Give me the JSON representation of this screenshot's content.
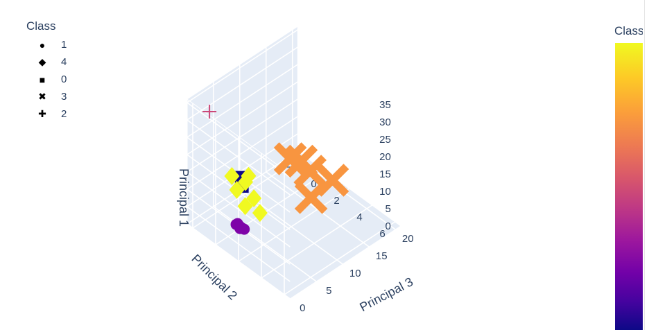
{
  "legend": {
    "title": "Class",
    "items": [
      {
        "label": "1",
        "symbol": "●",
        "icon": "circle-icon"
      },
      {
        "label": "4",
        "symbol": "◆",
        "icon": "diamond-icon"
      },
      {
        "label": "0",
        "symbol": "■",
        "icon": "square-icon"
      },
      {
        "label": "3",
        "symbol": "✖",
        "icon": "x-icon"
      },
      {
        "label": "2",
        "symbol": "✚",
        "icon": "cross-icon"
      }
    ]
  },
  "colorbar": {
    "title": "Class"
  },
  "colors": {
    "class_0": "#0d0887",
    "class_1": "#7e03a8",
    "class_2": "#cc4778",
    "class_3": "#f89540",
    "class_4": "#f0f921",
    "pane": "#e5ecf6",
    "grid": "#ffffff",
    "text": "#2a3f5f"
  },
  "chart_data": {
    "type": "scatter",
    "subtype": "scatter3d",
    "axes": {
      "x": {
        "label": "Principal 3",
        "ticks": [
          0,
          5,
          10,
          15,
          20
        ],
        "range": [
          0,
          21
        ]
      },
      "y": {
        "label": "Principal 2",
        "ticks": [
          -2,
          0,
          2,
          4,
          6
        ],
        "range": [
          -2.5,
          6.5
        ]
      },
      "z": {
        "label": "Principal 1",
        "ticks": [
          0,
          5,
          10,
          15,
          20,
          25,
          30,
          35
        ],
        "range": [
          0,
          36
        ]
      }
    },
    "grid": true,
    "legend_position": "top-left",
    "colorscale": "plasma",
    "series": [
      {
        "name": "1",
        "class": 1,
        "symbol": "circle",
        "points": [
          [
            2.5,
            1.0,
            5
          ],
          [
            2.2,
            1.2,
            5.5
          ],
          [
            1.8,
            1.3,
            6
          ],
          [
            2.8,
            0.8,
            4.5
          ],
          [
            1.5,
            1.1,
            7
          ],
          [
            3.0,
            0.9,
            4
          ],
          [
            2.0,
            1.0,
            6.5
          ],
          [
            2.6,
            1.3,
            5
          ]
        ]
      },
      {
        "name": "4",
        "class": 4,
        "symbol": "diamond",
        "points": [
          [
            3,
            1.2,
            11
          ],
          [
            2.5,
            0.7,
            15
          ],
          [
            3.5,
            1.0,
            17
          ],
          [
            4,
            1.5,
            13
          ],
          [
            2,
            0.5,
            19
          ],
          [
            4.5,
            1.8,
            9
          ],
          [
            3.2,
            1.4,
            20
          ]
        ]
      },
      {
        "name": "0",
        "class": 0,
        "symbol": "square",
        "points": [
          [
            4.2,
            0.3,
            16
          ],
          [
            4.0,
            0.5,
            14
          ]
        ]
      },
      {
        "name": "3",
        "class": 3,
        "symbol": "x",
        "points": [
          [
            20,
            1.0,
            1
          ],
          [
            19.5,
            -1.5,
            1
          ],
          [
            18.5,
            -2.0,
            1.5
          ],
          [
            15.5,
            1.2,
            1
          ],
          [
            19,
            -0.5,
            1
          ]
        ]
      },
      {
        "name": "2",
        "class": 2,
        "symbol": "cross",
        "points": [
          [
            1,
            -1.0,
            35
          ]
        ]
      }
    ]
  }
}
